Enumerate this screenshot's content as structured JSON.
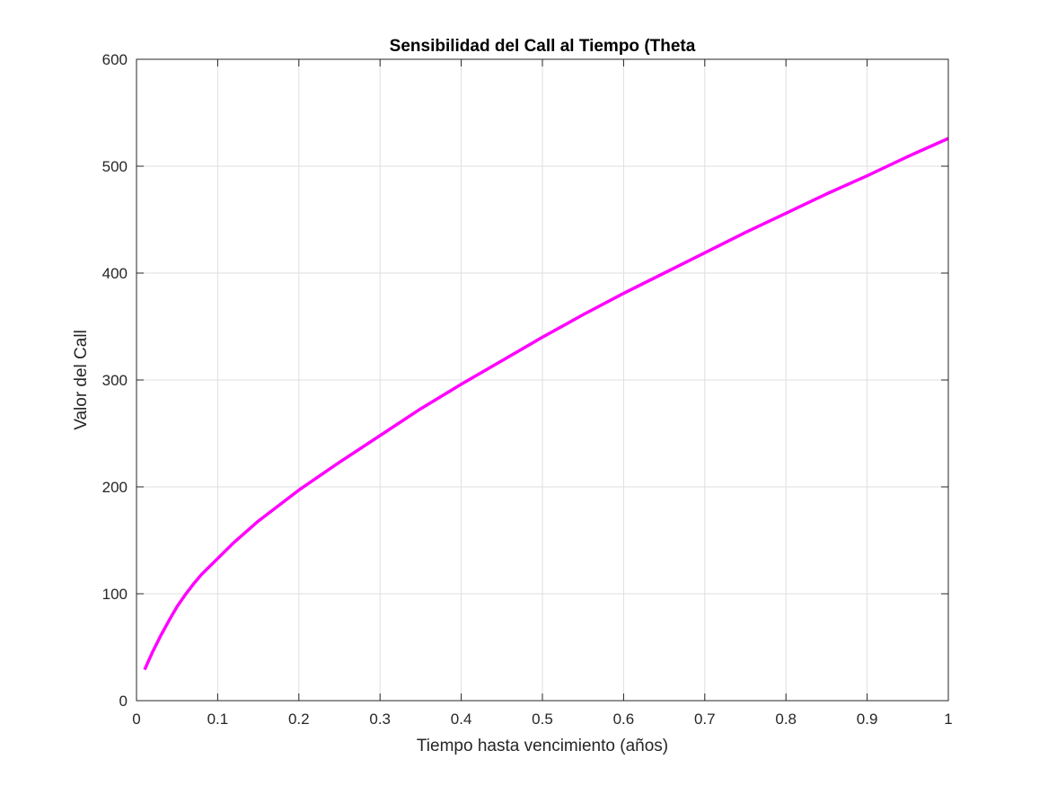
{
  "chart_data": {
    "type": "line",
    "title": "Sensibilidad del Call al Tiempo (Theta",
    "xlabel": "Tiempo hasta vencimiento (años)",
    "ylabel": "Valor del Call",
    "xlim": [
      0,
      1
    ],
    "ylim": [
      0,
      600
    ],
    "xticks": [
      0,
      0.1,
      0.2,
      0.3,
      0.4,
      0.5,
      0.6,
      0.7,
      0.8,
      0.9,
      1
    ],
    "xtick_labels": [
      "0",
      "0.1",
      "0.2",
      "0.3",
      "0.4",
      "0.5",
      "0.6",
      "0.7",
      "0.8",
      "0.9",
      "1"
    ],
    "yticks": [
      0,
      100,
      200,
      300,
      400,
      500,
      600
    ],
    "ytick_labels": [
      "0",
      "100",
      "200",
      "300",
      "400",
      "500",
      "600"
    ],
    "grid": true,
    "box": true,
    "series": [
      {
        "color": "#ff00ff",
        "x": [
          0.01,
          0.02,
          0.03,
          0.04,
          0.05,
          0.06,
          0.07,
          0.08,
          0.1,
          0.12,
          0.15,
          0.2,
          0.25,
          0.3,
          0.35,
          0.4,
          0.45,
          0.5,
          0.55,
          0.6,
          0.65,
          0.7,
          0.75,
          0.8,
          0.85,
          0.9,
          0.95,
          1.0
        ],
        "y": [
          29,
          46,
          61,
          75,
          88,
          99,
          109,
          118,
          133,
          148,
          168,
          197,
          223,
          248,
          273,
          296,
          318,
          340,
          361,
          381,
          400,
          419,
          438,
          456,
          474,
          491,
          509,
          526
        ]
      }
    ]
  }
}
